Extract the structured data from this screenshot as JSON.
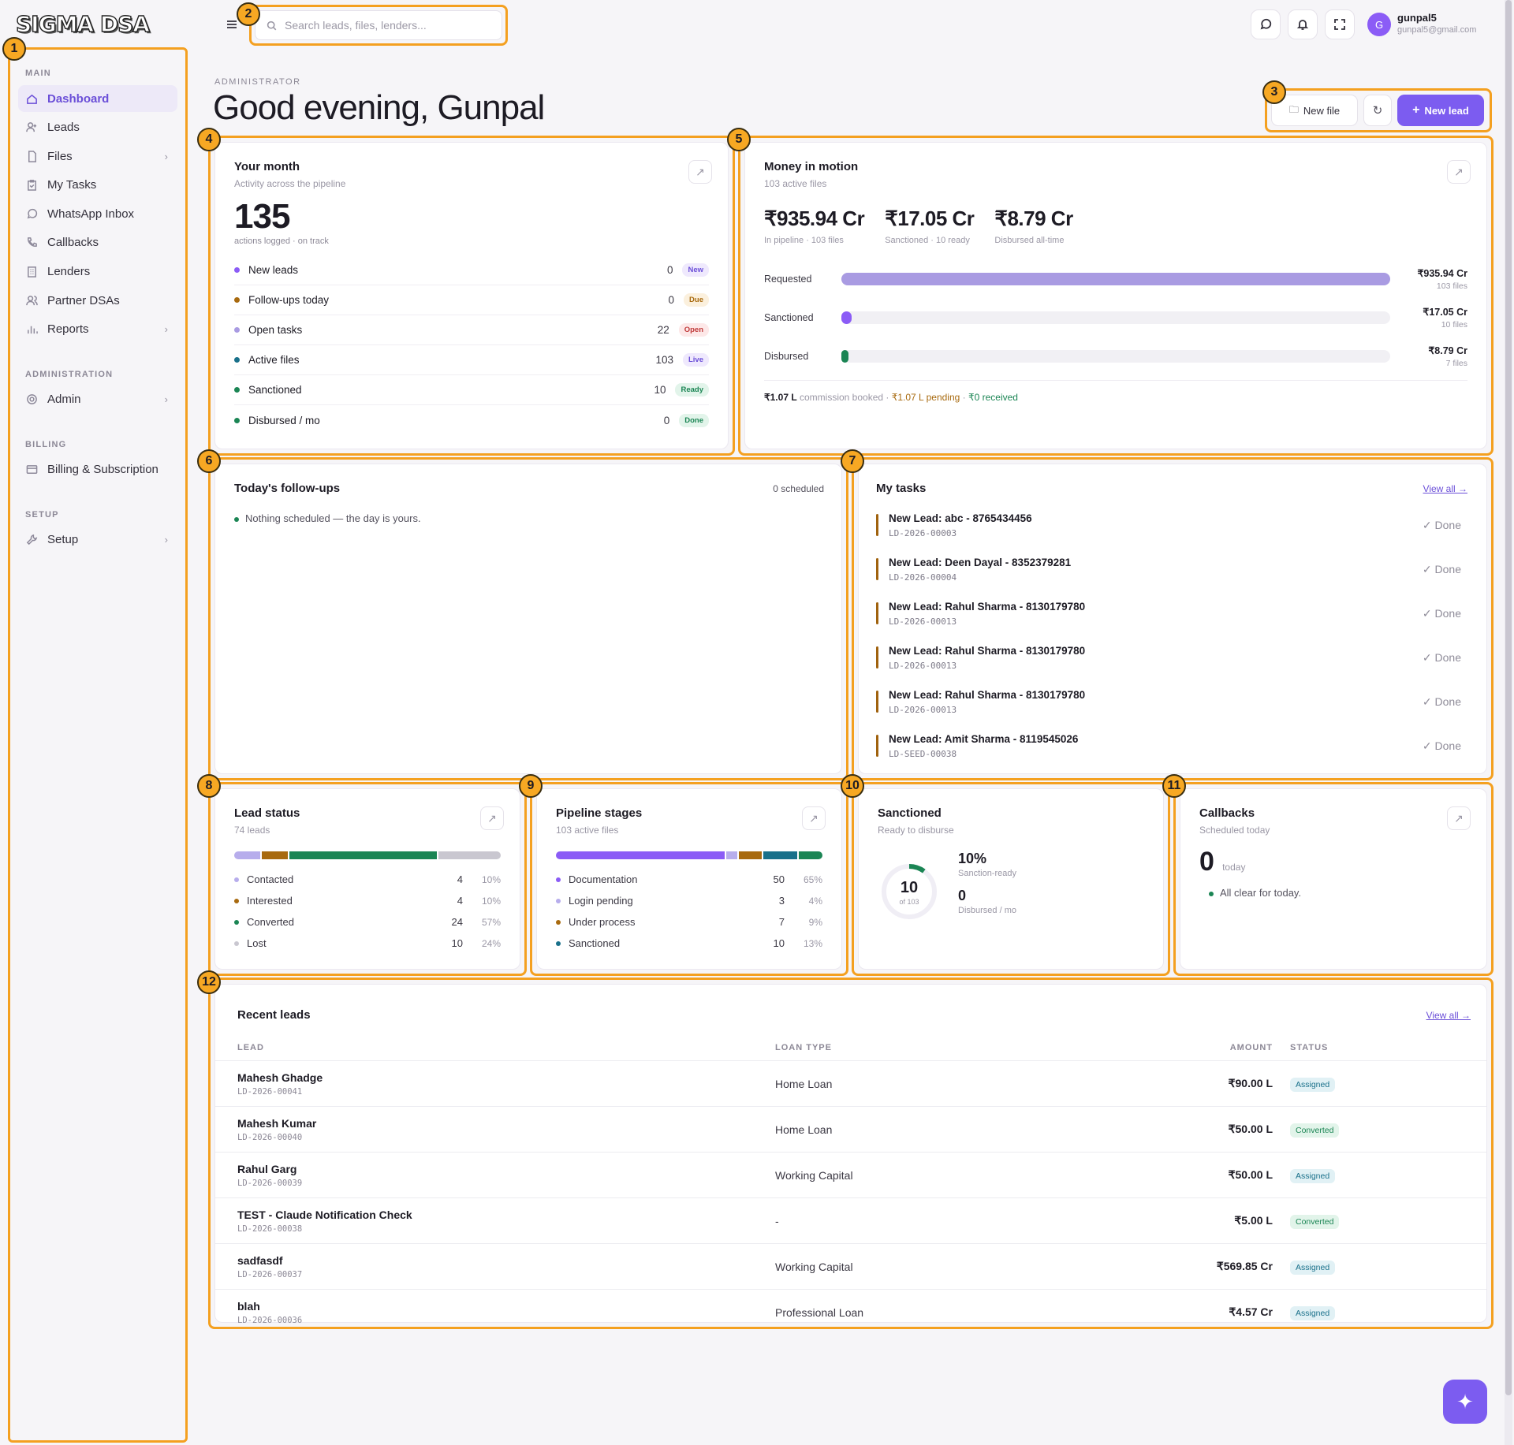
{
  "brand": {
    "logo_text": "SIGMA DSA"
  },
  "search": {
    "placeholder": "Search leads, files, lenders..."
  },
  "user": {
    "initial": "G",
    "name": "gunpal5",
    "email": "gunpal5@gmail.com"
  },
  "sidebar": {
    "sections": [
      {
        "label": "MAIN",
        "items": [
          {
            "label": "Dashboard",
            "icon": "home-icon",
            "active": true
          },
          {
            "label": "Leads",
            "icon": "user-plus-icon"
          },
          {
            "label": "Files",
            "icon": "file-icon",
            "chevron": true
          },
          {
            "label": "My Tasks",
            "icon": "clipboard-icon"
          },
          {
            "label": "WhatsApp Inbox",
            "icon": "whatsapp-icon"
          },
          {
            "label": "Callbacks",
            "icon": "phone-icon"
          },
          {
            "label": "Lenders",
            "icon": "building-icon"
          },
          {
            "label": "Partner DSAs",
            "icon": "users-icon"
          },
          {
            "label": "Reports",
            "icon": "bar-chart-icon",
            "chevron": true
          }
        ]
      },
      {
        "label": "ADMINISTRATION",
        "items": [
          {
            "label": "Admin",
            "icon": "gear-icon",
            "chevron": true
          }
        ]
      },
      {
        "label": "BILLING",
        "items": [
          {
            "label": "Billing & Subscription",
            "icon": "card-icon"
          }
        ]
      },
      {
        "label": "SETUP",
        "items": [
          {
            "label": "Setup",
            "icon": "wrench-icon",
            "chevron": true
          }
        ]
      }
    ]
  },
  "header": {
    "role": "ADMINISTRATOR",
    "greeting": "Good evening, Gunpal",
    "new_file": "New file",
    "new_lead": "New lead"
  },
  "your_month": {
    "title": "Your month",
    "subtitle": "Activity across the pipeline",
    "count": "135",
    "count_caption": "actions logged · on track",
    "rows": [
      {
        "label": "New leads",
        "value": "0",
        "tag": "New",
        "color": "#8b5cf6",
        "tag_bg": "#efe9fd",
        "tag_fg": "#6b4fd8"
      },
      {
        "label": "Follow-ups today",
        "value": "0",
        "tag": "Due",
        "color": "#a86a0f",
        "tag_bg": "#fbf0dd",
        "tag_fg": "#a86a0f"
      },
      {
        "label": "Open tasks",
        "value": "22",
        "tag": "Open",
        "color": "#a99be2",
        "tag_bg": "#fde8e8",
        "tag_fg": "#c03b3b"
      },
      {
        "label": "Active files",
        "value": "103",
        "tag": "Live",
        "color": "#19708a",
        "tag_bg": "#efe9fd",
        "tag_fg": "#6b4fd8"
      },
      {
        "label": "Sanctioned",
        "value": "10",
        "tag": "Ready",
        "color": "#1b8554",
        "tag_bg": "#e2f4ea",
        "tag_fg": "#1b8554"
      },
      {
        "label": "Disbursed / mo",
        "value": "0",
        "tag": "Done",
        "color": "#1b8554",
        "tag_bg": "#e2f4ea",
        "tag_fg": "#1b8554"
      }
    ]
  },
  "money": {
    "title": "Money in motion",
    "subtitle": "103 active files",
    "kpis": [
      {
        "value": "₹935.94 Cr",
        "caption": "In pipeline · 103 files"
      },
      {
        "value": "₹17.05 Cr",
        "caption": "Sanctioned · 10 ready"
      },
      {
        "value": "₹8.79 Cr",
        "caption": "Disbursed all-time"
      }
    ],
    "bars": [
      {
        "label": "Requested",
        "amount": "₹935.94 Cr",
        "files": "103 files",
        "fraction": 1.0,
        "color": "#a99be2"
      },
      {
        "label": "Sanctioned",
        "amount": "₹17.05 Cr",
        "files": "10 files",
        "fraction": 0.018,
        "color": "#8b5cf6"
      },
      {
        "label": "Disbursed",
        "amount": "₹8.79 Cr",
        "files": "7 files",
        "fraction": 0.009,
        "color": "#1b8554"
      }
    ],
    "footer": {
      "booked": "₹1.07 L",
      "booked_label": " commission booked · ",
      "pending": "₹1.07 L pending",
      "sep": " · ",
      "received": "₹0 received"
    }
  },
  "followups": {
    "title": "Today's follow-ups",
    "count": "0 scheduled",
    "empty": "Nothing scheduled — the day is yours."
  },
  "tasks": {
    "title": "My tasks",
    "view_all": "View all →",
    "done_label": "✓ Done",
    "items": [
      {
        "title": "New Lead: abc - 8765434456",
        "id": "LD-2026-00003"
      },
      {
        "title": "New Lead: Deen Dayal - 8352379281",
        "id": "LD-2026-00004"
      },
      {
        "title": "New Lead: Rahul Sharma - 8130179780",
        "id": "LD-2026-00013"
      },
      {
        "title": "New Lead: Rahul Sharma - 8130179780",
        "id": "LD-2026-00013"
      },
      {
        "title": "New Lead: Rahul Sharma - 8130179780",
        "id": "LD-2026-00013"
      },
      {
        "title": "New Lead: Amit Sharma - 8119545026",
        "id": "LD-SEED-00038"
      }
    ]
  },
  "lead_status": {
    "title": "Lead status",
    "subtitle": "74 leads",
    "items": [
      {
        "label": "Contacted",
        "count": "4",
        "pct": "10%",
        "color": "#b7adec",
        "frac": 0.1
      },
      {
        "label": "Interested",
        "count": "4",
        "pct": "10%",
        "color": "#a86a0f",
        "frac": 0.1
      },
      {
        "label": "Converted",
        "count": "24",
        "pct": "57%",
        "color": "#1b8554",
        "frac": 0.57
      },
      {
        "label": "Lost",
        "count": "10",
        "pct": "24%",
        "color": "#c9c7d0",
        "frac": 0.24
      }
    ]
  },
  "pipeline": {
    "title": "Pipeline stages",
    "subtitle": "103 active files",
    "items": [
      {
        "label": "Documentation",
        "count": "50",
        "pct": "65%",
        "color": "#8b5cf6",
        "frac": 0.65
      },
      {
        "label": "Login pending",
        "count": "3",
        "pct": "4%",
        "color": "#b7adec",
        "frac": 0.04
      },
      {
        "label": "Under process",
        "count": "7",
        "pct": "9%",
        "color": "#a86a0f",
        "frac": 0.09
      },
      {
        "label": "Sanctioned",
        "count": "10",
        "pct": "13%",
        "color": "#19708a",
        "frac": 0.13
      }
    ],
    "extra_color": "#1b8554",
    "extra_frac": 0.09
  },
  "sanctioned": {
    "title": "Sanctioned",
    "subtitle": "Ready to disburse",
    "ring_value": "10",
    "ring_caption": "of 103",
    "ring_fraction": 0.1,
    "pct": "10%",
    "pct_caption": "Sanction-ready",
    "disbursed": "0",
    "disbursed_caption": "Disbursed / mo"
  },
  "callbacks": {
    "title": "Callbacks",
    "subtitle": "Scheduled today",
    "count": "0",
    "count_caption": "today",
    "status": "All clear for today."
  },
  "recent": {
    "title": "Recent leads",
    "view_all": "View all →",
    "headers": {
      "lead": "LEAD",
      "loan": "LOAN TYPE",
      "amount": "AMOUNT",
      "status": "STATUS"
    },
    "rows": [
      {
        "name": "Mahesh Ghadge",
        "id": "LD-2026-00041",
        "loan": "Home Loan",
        "amount": "₹90.00 L",
        "status": "Assigned"
      },
      {
        "name": "Mahesh Kumar",
        "id": "LD-2026-00040",
        "loan": "Home Loan",
        "amount": "₹50.00 L",
        "status": "Converted"
      },
      {
        "name": "Rahul Garg",
        "id": "LD-2026-00039",
        "loan": "Working Capital",
        "amount": "₹50.00 L",
        "status": "Assigned"
      },
      {
        "name": "TEST - Claude Notification Check",
        "id": "LD-2026-00038",
        "loan": "-",
        "amount": "₹5.00 L",
        "status": "Converted"
      },
      {
        "name": "sadfasdf",
        "id": "LD-2026-00037",
        "loan": "Working Capital",
        "amount": "₹569.85 Cr",
        "status": "Assigned"
      },
      {
        "name": "blah",
        "id": "LD-2026-00036",
        "loan": "Professional Loan",
        "amount": "₹4.57 Cr",
        "status": "Assigned"
      }
    ]
  },
  "badges": [
    "1",
    "2",
    "3",
    "4",
    "5",
    "6",
    "7",
    "8",
    "9",
    "10",
    "11",
    "12"
  ],
  "colors": {
    "accent": "#6b4fd8",
    "annotation": "#f4a020"
  }
}
